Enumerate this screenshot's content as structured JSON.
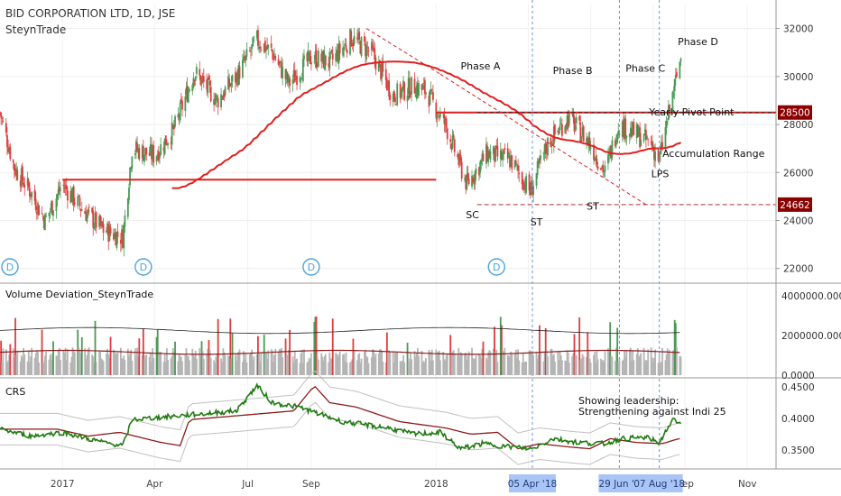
{
  "header": {
    "title": "BID CORPORATION LTD, 1D, JSE",
    "author": "SteynTrade"
  },
  "panes": {
    "volume_title": "Volume Deviation_SteynTrade",
    "crs_title": "CRS"
  },
  "colors": {
    "up": "#4a9a55",
    "down": "#e03c3c",
    "ma": "#e02020",
    "crs_line": "#1f7a10",
    "crs_ma": "#8b1a1a",
    "volume_gray": "#b5b5b5",
    "guide": "#6a8ee8",
    "badge_red": "#8b0000",
    "event_badge": "#4da3e0"
  },
  "chart_data": [
    {
      "type": "candlestick",
      "title": "BID CORPORATION LTD, 1D, JSE",
      "ylim": [
        21500,
        33000
      ],
      "yticks": [
        22000,
        24000,
        26000,
        28000,
        30000,
        32000
      ],
      "x_labels": [
        "2017",
        "Apr",
        "Jul",
        "Sep",
        "2018",
        "Apr",
        "Jun",
        "Aug",
        "Sep",
        "Nov"
      ],
      "price_path": [
        {
          "date": "2016-11-01",
          "close": 28500
        },
        {
          "date": "2016-11-15",
          "close": 26200
        },
        {
          "date": "2016-12-01",
          "close": 25200
        },
        {
          "date": "2016-12-15",
          "close": 24000
        },
        {
          "date": "2017-01-01",
          "close": 25500
        },
        {
          "date": "2017-01-20",
          "close": 24500
        },
        {
          "date": "2017-02-10",
          "close": 23600
        },
        {
          "date": "2017-03-01",
          "close": 23300
        },
        {
          "date": "2017-03-10",
          "close": 27000
        },
        {
          "date": "2017-04-01",
          "close": 26700
        },
        {
          "date": "2017-04-20",
          "close": 27800
        },
        {
          "date": "2017-05-10",
          "close": 30200
        },
        {
          "date": "2017-06-01",
          "close": 29000
        },
        {
          "date": "2017-06-20",
          "close": 30000
        },
        {
          "date": "2017-07-10",
          "close": 31500
        },
        {
          "date": "2017-07-25",
          "close": 31000
        },
        {
          "date": "2017-08-10",
          "close": 29700
        },
        {
          "date": "2017-09-01",
          "close": 30800
        },
        {
          "date": "2017-09-20",
          "close": 30600
        },
        {
          "date": "2017-10-10",
          "close": 31600
        },
        {
          "date": "2017-10-30",
          "close": 31000
        },
        {
          "date": "2017-11-20",
          "close": 29200
        },
        {
          "date": "2017-12-10",
          "close": 29600
        },
        {
          "date": "2017-12-22",
          "close": 29400
        },
        {
          "date": "2018-01-10",
          "close": 28000
        },
        {
          "date": "2018-01-31",
          "close": 25500
        },
        {
          "date": "2018-02-20",
          "close": 26800
        },
        {
          "date": "2018-03-15",
          "close": 26500
        },
        {
          "date": "2018-04-03",
          "close": 25200
        },
        {
          "date": "2018-04-20",
          "close": 27200
        },
        {
          "date": "2018-05-10",
          "close": 28300
        },
        {
          "date": "2018-05-30",
          "close": 27300
        },
        {
          "date": "2018-06-15",
          "close": 26000
        },
        {
          "date": "2018-06-28",
          "close": 28000
        },
        {
          "date": "2018-07-15",
          "close": 27600
        },
        {
          "date": "2018-07-30",
          "close": 27200
        },
        {
          "date": "2018-08-07",
          "close": 26500
        },
        {
          "date": "2018-08-15",
          "close": 28200
        },
        {
          "date": "2018-08-28",
          "close": 30800
        }
      ],
      "price_labels": [
        {
          "text": "28500",
          "value": 28500
        },
        {
          "text": "24662",
          "value": 24662
        }
      ],
      "annotations": [
        "Phase A",
        "Phase B",
        "Phase C",
        "Phase D",
        "Yearly Pivot Point",
        "Accumulation Range",
        "LPS",
        "SC",
        "ST",
        "ST"
      ],
      "event_badge": "D"
    },
    {
      "type": "bar",
      "title": "Volume Deviation_SteynTrade",
      "yticks_labels": [
        "0.0000",
        "2000000.0000",
        "4000000.0000"
      ],
      "ylim": [
        0,
        4500000
      ]
    },
    {
      "type": "line",
      "title": "CRS",
      "yticks_labels": [
        "0.3500",
        "0.4000",
        "0.4500"
      ],
      "ylim": [
        0.32,
        0.46
      ],
      "crs_path": [
        {
          "date": "2016-11-01",
          "value": 0.383
        },
        {
          "date": "2016-12-01",
          "value": 0.372
        },
        {
          "date": "2017-01-01",
          "value": 0.378
        },
        {
          "date": "2017-02-10",
          "value": 0.362
        },
        {
          "date": "2017-03-01",
          "value": 0.357
        },
        {
          "date": "2017-03-10",
          "value": 0.398
        },
        {
          "date": "2017-05-01",
          "value": 0.405
        },
        {
          "date": "2017-06-20",
          "value": 0.412
        },
        {
          "date": "2017-07-10",
          "value": 0.452
        },
        {
          "date": "2017-07-25",
          "value": 0.425
        },
        {
          "date": "2017-08-20",
          "value": 0.418
        },
        {
          "date": "2017-10-01",
          "value": 0.395
        },
        {
          "date": "2017-11-15",
          "value": 0.385
        },
        {
          "date": "2017-12-10",
          "value": 0.375
        },
        {
          "date": "2018-01-05",
          "value": 0.378
        },
        {
          "date": "2018-01-25",
          "value": 0.352
        },
        {
          "date": "2018-02-15",
          "value": 0.36
        },
        {
          "date": "2018-03-15",
          "value": 0.355
        },
        {
          "date": "2018-04-05",
          "value": 0.352
        },
        {
          "date": "2018-04-25",
          "value": 0.368
        },
        {
          "date": "2018-05-20",
          "value": 0.362
        },
        {
          "date": "2018-06-15",
          "value": 0.36
        },
        {
          "date": "2018-07-01",
          "value": 0.368
        },
        {
          "date": "2018-07-25",
          "value": 0.37
        },
        {
          "date": "2018-08-07",
          "value": 0.362
        },
        {
          "date": "2018-08-20",
          "value": 0.398
        },
        {
          "date": "2018-08-28",
          "value": 0.39
        }
      ],
      "annotation": "Showing leadership:\nStrengthening against Indi 25"
    }
  ],
  "x_axis_badges": [
    "05 Apr '18",
    "29 Jun '1",
    "07 Aug '18"
  ]
}
